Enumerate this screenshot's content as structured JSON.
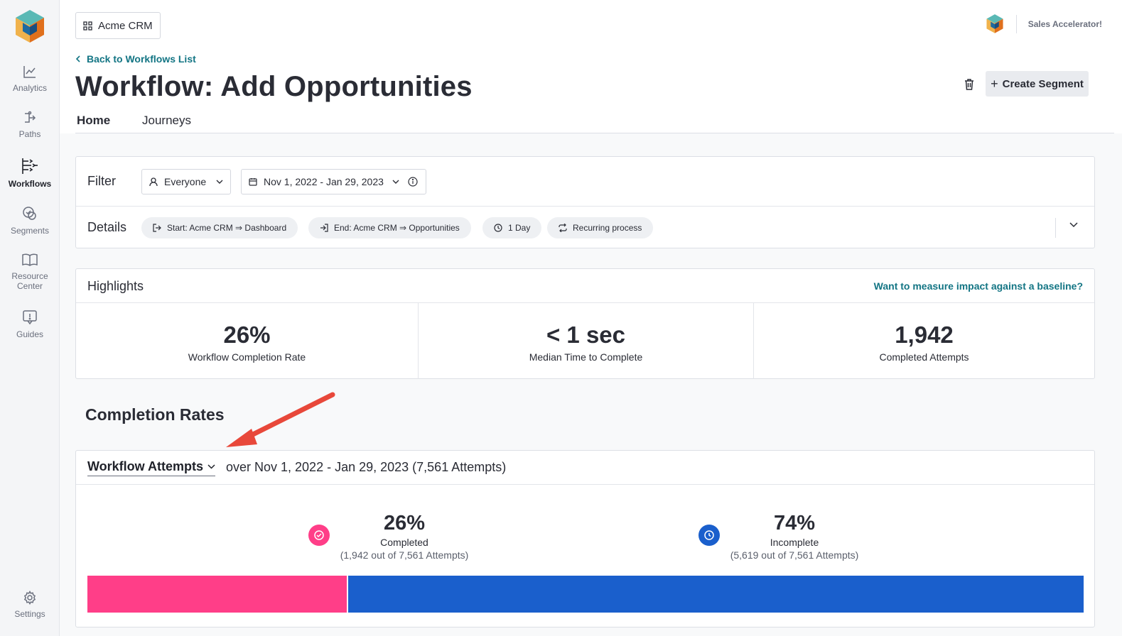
{
  "sidebar": {
    "items": [
      {
        "id": "analytics",
        "label": "Analytics",
        "icon": "chart-line-icon"
      },
      {
        "id": "paths",
        "label": "Paths",
        "icon": "paths-icon"
      },
      {
        "id": "workflows",
        "label": "Workflows",
        "icon": "workflows-icon",
        "active": true
      },
      {
        "id": "segments",
        "label": "Segments",
        "icon": "segments-icon"
      },
      {
        "id": "resource-center",
        "label_line1": "Resource",
        "label_line2": "Center",
        "icon": "book-icon"
      },
      {
        "id": "guides",
        "label": "Guides",
        "icon": "guides-icon"
      }
    ],
    "settings_label": "Settings"
  },
  "header": {
    "app_switcher_label": "Acme CRM",
    "account_name": "Sales Accelerator!",
    "back_link": "Back to Workflows List",
    "title": "Workflow: Add Opportunities",
    "create_segment_label": "Create Segment"
  },
  "tabs": [
    {
      "label": "Home",
      "active": true
    },
    {
      "label": "Journeys",
      "active": false
    }
  ],
  "filter": {
    "label": "Filter",
    "segment_value": "Everyone",
    "date_range": "Nov 1, 2022 - Jan 29, 2023"
  },
  "details": {
    "label": "Details",
    "pills": {
      "start": "Start: Acme CRM ⇒ Dashboard",
      "end": "End: Acme CRM ⇒ Opportunities",
      "duration": "1 Day",
      "recurring": "Recurring process"
    }
  },
  "highlights": {
    "title": "Highlights",
    "baseline_link": "Want to measure impact against a baseline?",
    "stats": [
      {
        "value": "26%",
        "label": "Workflow Completion Rate"
      },
      {
        "value": "< 1 sec",
        "label": "Median Time to Complete"
      },
      {
        "value": "1,942",
        "label": "Completed Attempts"
      }
    ]
  },
  "completion": {
    "section_title": "Completion Rates",
    "metric_select": "Workflow Attempts",
    "range_text": "over Nov 1, 2022 - Jan 29, 2023 (7,561 Attempts)",
    "completed": {
      "pct": "26%",
      "label": "Completed",
      "sub": "(1,942 out of 7,561 Attempts)",
      "fraction": 0.26,
      "color": "#ff3e88"
    },
    "incomplete": {
      "pct": "74%",
      "label": "Incomplete",
      "sub": "(5,619 out of 7,561 Attempts)",
      "fraction": 0.74,
      "color": "#1a5fcc"
    }
  },
  "colors": {
    "accent_teal": "#137584",
    "annotation_arrow": "#e8483a"
  }
}
